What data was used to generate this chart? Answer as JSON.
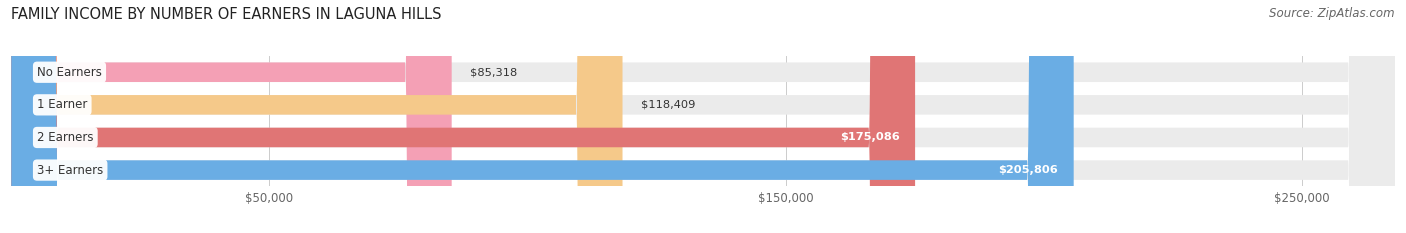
{
  "title": "FAMILY INCOME BY NUMBER OF EARNERS IN LAGUNA HILLS",
  "source": "Source: ZipAtlas.com",
  "categories": [
    "No Earners",
    "1 Earner",
    "2 Earners",
    "3+ Earners"
  ],
  "values": [
    85318,
    118409,
    175086,
    205806
  ],
  "bar_colors": [
    "#f4a0b5",
    "#f5c98a",
    "#e07575",
    "#6aade4"
  ],
  "label_colors": [
    "#333333",
    "#333333",
    "#ffffff",
    "#ffffff"
  ],
  "xlim": [
    0,
    268000
  ],
  "xticks": [
    50000,
    150000,
    250000
  ],
  "xticklabels": [
    "$50,000",
    "$150,000",
    "$250,000"
  ],
  "bg_color": "#ffffff",
  "bar_bg_color": "#ebebeb",
  "title_fontsize": 10.5,
  "source_fontsize": 8.5
}
